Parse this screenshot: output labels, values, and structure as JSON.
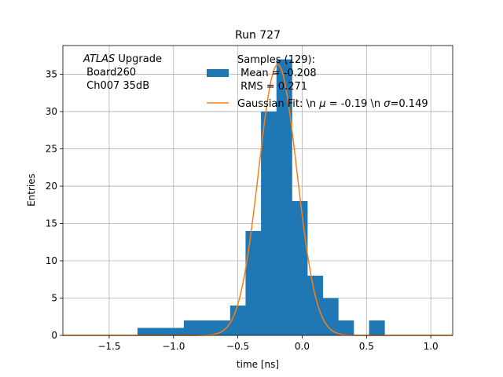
{
  "chart_data": {
    "type": "bar",
    "title": "Run 727",
    "xlabel": "time [ns]",
    "ylabel": "Entries",
    "xlim": [
      -1.86,
      1.17
    ],
    "ylim": [
      0,
      38.85
    ],
    "grid": true,
    "legend_position": "top-right",
    "xticks": [
      -1.5,
      -1.0,
      -0.5,
      0.0,
      0.5,
      1.0
    ],
    "xtick_labels": [
      "−1.5",
      "−1.0",
      "−0.5",
      "0.0",
      "0.5",
      "1.0"
    ],
    "yticks": [
      0,
      5,
      10,
      15,
      20,
      25,
      30,
      35
    ],
    "ytick_labels": [
      "0",
      "5",
      "10",
      "15",
      "20",
      "25",
      "30",
      "35"
    ],
    "annotation": {
      "line1_italic": "ATLAS",
      "line1_rest": " Upgrade",
      "line2": " Board260",
      "line3": " Ch007 35dB"
    },
    "histogram": {
      "name_lines": [
        "Samples (129):",
        " Mean = -0.208",
        " RMS = 0.271"
      ],
      "color": "#1f77b4",
      "bin_edges": [
        -1.28,
        -1.16,
        -1.04,
        -0.92,
        -0.8,
        -0.68,
        -0.56,
        -0.44,
        -0.32,
        -0.2,
        -0.08,
        0.04,
        0.16,
        0.28,
        0.4,
        0.52,
        0.64
      ],
      "counts": [
        1,
        1,
        1,
        2,
        2,
        2,
        4,
        14,
        30,
        37,
        18,
        8,
        5,
        2,
        0,
        2
      ]
    },
    "fit": {
      "label_prefix": "Gaussian Fit: \\n ",
      "mu_symbol": "μ",
      "mu_text": " = -0.19 \\n ",
      "sigma_symbol": "σ",
      "sigma_text": "=0.149",
      "color": "#ff7f0e",
      "mu": -0.19,
      "sigma": 0.149,
      "amplitude": 36.3
    }
  }
}
